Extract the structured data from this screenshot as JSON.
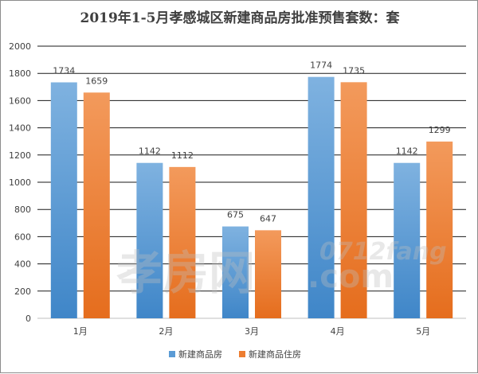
{
  "chart_data": {
    "type": "bar",
    "title": "2019年1-5月孝感城区新建商品房批准预售套数：套",
    "categories": [
      "1月",
      "2月",
      "3月",
      "4月",
      "5月"
    ],
    "series": [
      {
        "name": "新建商品房",
        "color": "#5b9bd5",
        "values": [
          1734,
          1142,
          675,
          1774,
          1142
        ]
      },
      {
        "name": "新建商品住房",
        "color": "#ed7d31",
        "values": [
          1659,
          1112,
          647,
          1735,
          1299
        ]
      }
    ],
    "ylim": [
      0,
      2000
    ],
    "yticks": [
      0,
      200,
      400,
      600,
      800,
      1000,
      1200,
      1400,
      1600,
      1800,
      2000
    ],
    "xlabel": "",
    "ylabel": "",
    "grid": true,
    "legend": "bottom-center"
  },
  "watermark": {
    "text_cn": "孝房网",
    "text_en": "0712fang",
    "text_com": ".com"
  }
}
